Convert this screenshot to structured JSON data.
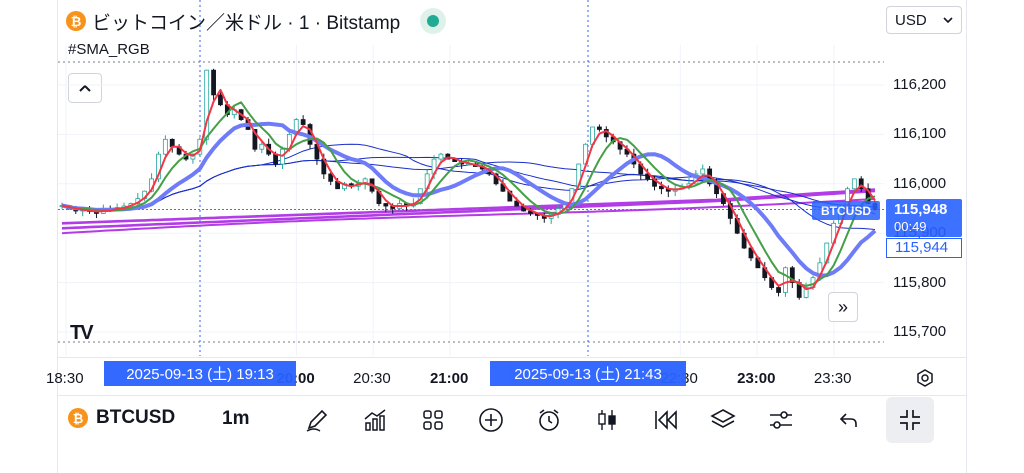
{
  "header": {
    "title": "ビットコイン／米ドル · 1 · Bitstamp",
    "coin_symbol": "₿",
    "currency": "USD",
    "status_color": "#22ab94"
  },
  "indicator": {
    "name": "#SMA_RGB"
  },
  "chart_data": {
    "type": "candlestick",
    "instrument": "BTCUSD",
    "interval": "1m",
    "ylim": [
      115670,
      116250
    ],
    "y_ticks": [
      "116,200",
      "116,100",
      "116,000",
      "115,900",
      "115,800",
      "115,700"
    ],
    "y_tick_values": [
      116200,
      116100,
      116000,
      115900,
      115800,
      115700
    ],
    "x_ticks": [
      {
        "label": "18:30",
        "t": 0
      },
      {
        "label": "20:00",
        "t": 90
      },
      {
        "label": "20:30",
        "t": 120
      },
      {
        "label": "21:00",
        "t": 150
      },
      {
        "label": "22:30",
        "t": 240
      },
      {
        "label": "23:00",
        "t": 270
      },
      {
        "label": "23:30",
        "t": 300
      }
    ],
    "x_tick_bold": [
      "20:00",
      "21:00",
      "23:00"
    ],
    "price_close": [
      115956,
      115950,
      115945,
      115948,
      115944,
      115940,
      115950,
      115946,
      115952,
      115955,
      115960,
      115970,
      115985,
      116010,
      116060,
      116090,
      116075,
      116060,
      116050,
      116060,
      116090,
      116230,
      116180,
      116160,
      116140,
      116150,
      116130,
      116110,
      116070,
      116080,
      116060,
      116040,
      116070,
      116100,
      116130,
      116120,
      116080,
      116050,
      116020,
      116005,
      115990,
      116000,
      115995,
      116000,
      116010,
      115985,
      115960,
      115955,
      115950,
      115960,
      115955,
      115960,
      115990,
      116020,
      116050,
      116060,
      116050,
      116045,
      116040,
      116040,
      116035,
      116030,
      116020,
      116000,
      115985,
      115965,
      115955,
      115945,
      115940,
      115936,
      115930,
      115938,
      115950,
      115960,
      115990,
      116040,
      116080,
      116115,
      116110,
      116095,
      116085,
      116070,
      116060,
      116040,
      116020,
      116010,
      115995,
      115990,
      115985,
      115990,
      115995,
      116000,
      116020,
      116030,
      116000,
      115980,
      115960,
      115930,
      115900,
      115870,
      115850,
      115830,
      115810,
      115790,
      115780,
      115830,
      115800,
      115770,
      115790,
      115810,
      115840,
      115880,
      115920,
      115950,
      115990,
      116010,
      115990,
      115960,
      115948
    ],
    "last_price": "115,948",
    "countdown": "00:49",
    "second_price": "115,944",
    "crosshair_times": [
      "2025-09-13 (土)   19:13",
      "2025-09-13 (土)   21:43"
    ]
  },
  "price_tag": {
    "symbol": "BTCUSD"
  },
  "colors": {
    "up": "#26a69a",
    "down": "#131722",
    "blue": "#2962ff",
    "sma_red": "#f23645",
    "sma_green": "#43a047",
    "sma_thick_blue": "#6f7cf7",
    "sma_purple": "#b23ce6",
    "sma_navy": "#1a2fc9"
  },
  "toolbar": {
    "symbol": "BTCUSD",
    "interval": "1m",
    "icons": [
      "pen-icon",
      "indicators-icon",
      "layouts-icon",
      "add-icon",
      "alert-icon",
      "candles-icon",
      "replay-icon",
      "layers-icon",
      "settings-icon",
      "undo-icon",
      "exit-fullscreen-icon"
    ]
  }
}
